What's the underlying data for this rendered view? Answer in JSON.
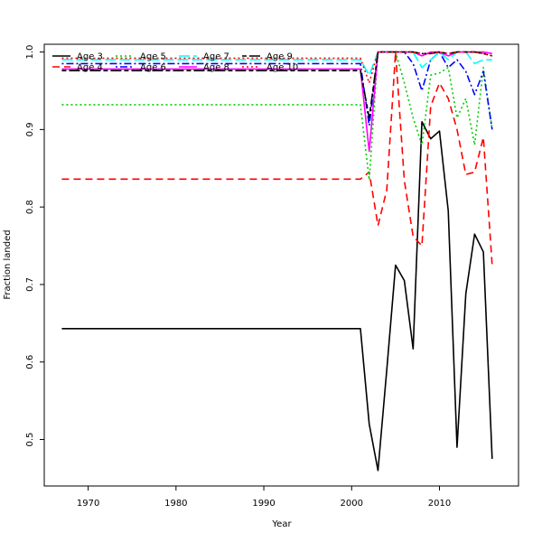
{
  "chart_data": {
    "type": "line",
    "title": "",
    "xlabel": "Year",
    "ylabel": "Fraction landed",
    "xlim": [
      1965,
      2019
    ],
    "ylim": [
      0.44,
      1.01
    ],
    "xticks": [
      1970,
      1980,
      1990,
      2000,
      2010
    ],
    "yticks": [
      0.5,
      0.6,
      0.7,
      0.8,
      0.9,
      1.0
    ],
    "ytick_labels": [
      "0.5",
      "0.6",
      "0.7",
      "0.8",
      "0.9",
      "1.0"
    ],
    "legend_position": "top-left",
    "grid": false,
    "x": [
      1967,
      1968,
      1969,
      1970,
      1971,
      1972,
      1973,
      1974,
      1975,
      1976,
      1977,
      1978,
      1979,
      1980,
      1981,
      1982,
      1983,
      1984,
      1985,
      1986,
      1987,
      1988,
      1989,
      1990,
      1991,
      1992,
      1993,
      1994,
      1995,
      1996,
      1997,
      1998,
      1999,
      2000,
      2001,
      2002,
      2003,
      2004,
      2005,
      2006,
      2007,
      2008,
      2009,
      2010,
      2011,
      2012,
      2013,
      2014,
      2015,
      2016
    ],
    "series": [
      {
        "name": "Age 3",
        "color": "#000000",
        "dash": "solid",
        "values": [
          0.643,
          0.643,
          0.643,
          0.643,
          0.643,
          0.643,
          0.643,
          0.643,
          0.643,
          0.643,
          0.643,
          0.643,
          0.643,
          0.643,
          0.643,
          0.643,
          0.643,
          0.643,
          0.643,
          0.643,
          0.643,
          0.643,
          0.643,
          0.643,
          0.643,
          0.643,
          0.643,
          0.643,
          0.643,
          0.643,
          0.643,
          0.643,
          0.643,
          0.643,
          0.643,
          0.52,
          0.46,
          0.59,
          0.725,
          0.705,
          0.617,
          0.91,
          0.888,
          0.898,
          0.795,
          0.49,
          0.688,
          0.765,
          0.742,
          0.475
        ]
      },
      {
        "name": "Age 4",
        "color": "#ff0000",
        "dash": "dashed",
        "values": [
          0.836,
          0.836,
          0.836,
          0.836,
          0.836,
          0.836,
          0.836,
          0.836,
          0.836,
          0.836,
          0.836,
          0.836,
          0.836,
          0.836,
          0.836,
          0.836,
          0.836,
          0.836,
          0.836,
          0.836,
          0.836,
          0.836,
          0.836,
          0.836,
          0.836,
          0.836,
          0.836,
          0.836,
          0.836,
          0.836,
          0.836,
          0.836,
          0.836,
          0.836,
          0.836,
          0.845,
          0.776,
          0.822,
          1.0,
          0.834,
          0.762,
          0.75,
          0.93,
          0.96,
          0.94,
          0.9,
          0.842,
          0.845,
          0.89,
          0.725
        ]
      },
      {
        "name": "Age 5",
        "color": "#00cd00",
        "dash": "dotted",
        "values": [
          0.932,
          0.932,
          0.932,
          0.932,
          0.932,
          0.932,
          0.932,
          0.932,
          0.932,
          0.932,
          0.932,
          0.932,
          0.932,
          0.932,
          0.932,
          0.932,
          0.932,
          0.932,
          0.932,
          0.932,
          0.932,
          0.932,
          0.932,
          0.932,
          0.932,
          0.932,
          0.932,
          0.932,
          0.932,
          0.932,
          0.932,
          0.932,
          0.932,
          0.932,
          0.932,
          0.835,
          1.0,
          1.0,
          1.0,
          0.96,
          0.915,
          0.88,
          0.97,
          0.973,
          0.98,
          0.915,
          0.94,
          0.88,
          0.98,
          0.9
        ]
      },
      {
        "name": "Age 6",
        "color": "#0000ff",
        "dash": "dashdot",
        "values": [
          0.985,
          0.985,
          0.985,
          0.985,
          0.985,
          0.985,
          0.985,
          0.985,
          0.985,
          0.985,
          0.985,
          0.985,
          0.985,
          0.985,
          0.985,
          0.985,
          0.985,
          0.985,
          0.985,
          0.985,
          0.985,
          0.985,
          0.985,
          0.985,
          0.985,
          0.985,
          0.985,
          0.985,
          0.985,
          0.985,
          0.985,
          0.985,
          0.985,
          0.985,
          0.985,
          0.905,
          1.0,
          1.0,
          1.0,
          1.0,
          0.985,
          0.95,
          0.99,
          1.0,
          0.98,
          0.99,
          0.975,
          0.945,
          0.975,
          0.9
        ]
      },
      {
        "name": "Age 7",
        "color": "#00ffff",
        "dash": "longdash",
        "values": [
          0.99,
          0.99,
          0.99,
          0.99,
          0.99,
          0.99,
          0.99,
          0.99,
          0.99,
          0.99,
          0.99,
          0.99,
          0.99,
          0.99,
          0.99,
          0.99,
          0.99,
          0.99,
          0.99,
          0.99,
          0.99,
          0.99,
          0.99,
          0.99,
          0.99,
          0.99,
          0.99,
          0.99,
          0.99,
          0.99,
          0.99,
          0.99,
          0.99,
          0.99,
          0.99,
          0.97,
          1.0,
          1.0,
          1.0,
          1.0,
          1.0,
          0.98,
          0.99,
          1.0,
          0.99,
          1.0,
          1.0,
          0.985,
          0.99,
          0.99
        ]
      },
      {
        "name": "Age 8",
        "color": "#ff00ff",
        "dash": "solid",
        "values": [
          0.978,
          0.978,
          0.978,
          0.978,
          0.978,
          0.978,
          0.978,
          0.978,
          0.978,
          0.978,
          0.978,
          0.978,
          0.978,
          0.978,
          0.978,
          0.978,
          0.978,
          0.978,
          0.978,
          0.978,
          0.978,
          0.978,
          0.978,
          0.978,
          0.978,
          0.978,
          0.978,
          0.978,
          0.978,
          0.978,
          0.978,
          0.978,
          0.978,
          0.978,
          0.978,
          0.872,
          1.0,
          1.0,
          1.0,
          1.0,
          1.0,
          0.995,
          1.0,
          1.0,
          0.995,
          1.0,
          1.0,
          1.0,
          1.0,
          0.998
        ]
      },
      {
        "name": "Age 9",
        "color": "#000000",
        "dash": "twodash",
        "values": [
          0.976,
          0.976,
          0.976,
          0.976,
          0.976,
          0.976,
          0.976,
          0.976,
          0.976,
          0.976,
          0.976,
          0.976,
          0.976,
          0.976,
          0.976,
          0.976,
          0.976,
          0.976,
          0.976,
          0.976,
          0.976,
          0.976,
          0.976,
          0.976,
          0.976,
          0.976,
          0.976,
          0.976,
          0.976,
          0.976,
          0.976,
          0.976,
          0.976,
          0.976,
          0.976,
          0.915,
          1.0,
          1.0,
          1.0,
          1.0,
          1.0,
          0.998,
          0.998,
          1.0,
          0.998,
          1.0,
          1.0,
          1.0,
          0.998,
          0.995
        ]
      },
      {
        "name": "Age 10",
        "color": "#ff0000",
        "dash": "dotted",
        "values": [
          0.992,
          0.992,
          0.992,
          0.992,
          0.992,
          0.992,
          0.992,
          0.992,
          0.992,
          0.992,
          0.992,
          0.992,
          0.992,
          0.992,
          0.992,
          0.992,
          0.992,
          0.992,
          0.992,
          0.992,
          0.992,
          0.992,
          0.992,
          0.992,
          0.992,
          0.992,
          0.992,
          0.992,
          0.992,
          0.992,
          0.992,
          0.992,
          0.992,
          0.992,
          0.992,
          0.96,
          1.0,
          1.0,
          1.0,
          1.0,
          1.0,
          0.998,
          0.998,
          1.0,
          0.998,
          1.0,
          1.0,
          1.0,
          0.998,
          0.995
        ]
      }
    ]
  }
}
